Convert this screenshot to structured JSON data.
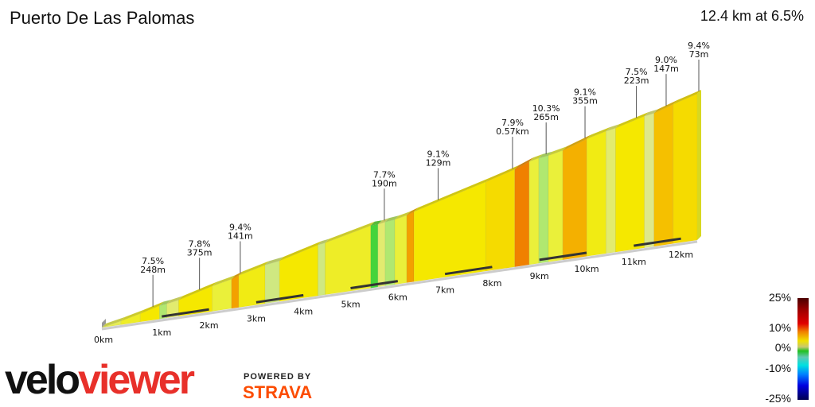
{
  "header": {
    "title": "Puerto De Las Palomas",
    "summary": "12.4 km at 6.5%"
  },
  "chart_data": {
    "type": "area",
    "title": "Puerto De Las Palomas",
    "total_distance_km": 12.4,
    "average_gradient_pct": 6.5,
    "x_ticks": [
      "0km",
      "1km",
      "2km",
      "3km",
      "4km",
      "5km",
      "6km",
      "7km",
      "8km",
      "9km",
      "10km",
      "11km",
      "12km"
    ],
    "segments": [
      {
        "start_km": 0.0,
        "end_km": 0.4,
        "gradient": 5.5
      },
      {
        "start_km": 0.4,
        "end_km": 0.8,
        "gradient": 6.5
      },
      {
        "start_km": 0.8,
        "end_km": 1.2,
        "gradient": 7.5
      },
      {
        "start_km": 1.2,
        "end_km": 1.35,
        "gradient": 3
      },
      {
        "start_km": 1.35,
        "end_km": 1.6,
        "gradient": 5
      },
      {
        "start_km": 1.6,
        "end_km": 2.3,
        "gradient": 7.5
      },
      {
        "start_km": 2.3,
        "end_km": 2.7,
        "gradient": 6
      },
      {
        "start_km": 2.7,
        "end_km": 2.85,
        "gradient": 10
      },
      {
        "start_km": 2.85,
        "end_km": 3.4,
        "gradient": 7
      },
      {
        "start_km": 3.4,
        "end_km": 3.7,
        "gradient": 4
      },
      {
        "start_km": 3.7,
        "end_km": 4.5,
        "gradient": 7.5
      },
      {
        "start_km": 4.5,
        "end_km": 4.65,
        "gradient": 4
      },
      {
        "start_km": 4.65,
        "end_km": 5.6,
        "gradient": 6.5
      },
      {
        "start_km": 5.6,
        "end_km": 5.75,
        "gradient": 0.5
      },
      {
        "start_km": 5.75,
        "end_km": 5.9,
        "gradient": 5
      },
      {
        "start_km": 5.9,
        "end_km": 6.1,
        "gradient": 3
      },
      {
        "start_km": 6.1,
        "end_km": 6.35,
        "gradient": 6
      },
      {
        "start_km": 6.35,
        "end_km": 6.5,
        "gradient": 10
      },
      {
        "start_km": 6.5,
        "end_km": 8.0,
        "gradient": 7.5
      },
      {
        "start_km": 8.0,
        "end_km": 8.6,
        "gradient": 8
      },
      {
        "start_km": 8.6,
        "end_km": 8.9,
        "gradient": 11
      },
      {
        "start_km": 8.9,
        "end_km": 9.1,
        "gradient": 6
      },
      {
        "start_km": 9.1,
        "end_km": 9.3,
        "gradient": 3
      },
      {
        "start_km": 9.3,
        "end_km": 9.6,
        "gradient": 6
      },
      {
        "start_km": 9.6,
        "end_km": 10.1,
        "gradient": 9.5
      },
      {
        "start_km": 10.1,
        "end_km": 10.5,
        "gradient": 7
      },
      {
        "start_km": 10.5,
        "end_km": 10.7,
        "gradient": 5
      },
      {
        "start_km": 10.7,
        "end_km": 11.3,
        "gradient": 7.5
      },
      {
        "start_km": 11.3,
        "end_km": 11.5,
        "gradient": 4.5
      },
      {
        "start_km": 11.5,
        "end_km": 11.9,
        "gradient": 9
      },
      {
        "start_km": 11.9,
        "end_km": 12.4,
        "gradient": 8
      }
    ],
    "annotations": [
      {
        "km": 1.03,
        "gradient": "7.5%",
        "length": "248m"
      },
      {
        "km": 2.0,
        "gradient": "7.8%",
        "length": "375m"
      },
      {
        "km": 2.85,
        "gradient": "9.4%",
        "length": "141m"
      },
      {
        "km": 5.85,
        "gradient": "7.7%",
        "length": "190m"
      },
      {
        "km": 6.97,
        "gradient": "9.1%",
        "length": "129m"
      },
      {
        "km": 8.52,
        "gradient": "7.9%",
        "length": "0.57km"
      },
      {
        "km": 9.22,
        "gradient": "10.3%",
        "length": "265m"
      },
      {
        "km": 10.03,
        "gradient": "9.1%",
        "length": "355m"
      },
      {
        "km": 11.1,
        "gradient": "7.5%",
        "length": "223m"
      },
      {
        "km": 11.72,
        "gradient": "9.0%",
        "length": "147m"
      },
      {
        "km": 12.4,
        "gradient": "9.4%",
        "length": "73m"
      }
    ],
    "legend": {
      "type": "color-scale",
      "position": "bottom-right",
      "labels": [
        "25%",
        "10%",
        "0%",
        "-10%",
        "-25%"
      ]
    }
  },
  "branding": {
    "velo": "velo",
    "viewer": "viewer",
    "powered_by": "POWERED BY",
    "strava": "STRAVA"
  }
}
